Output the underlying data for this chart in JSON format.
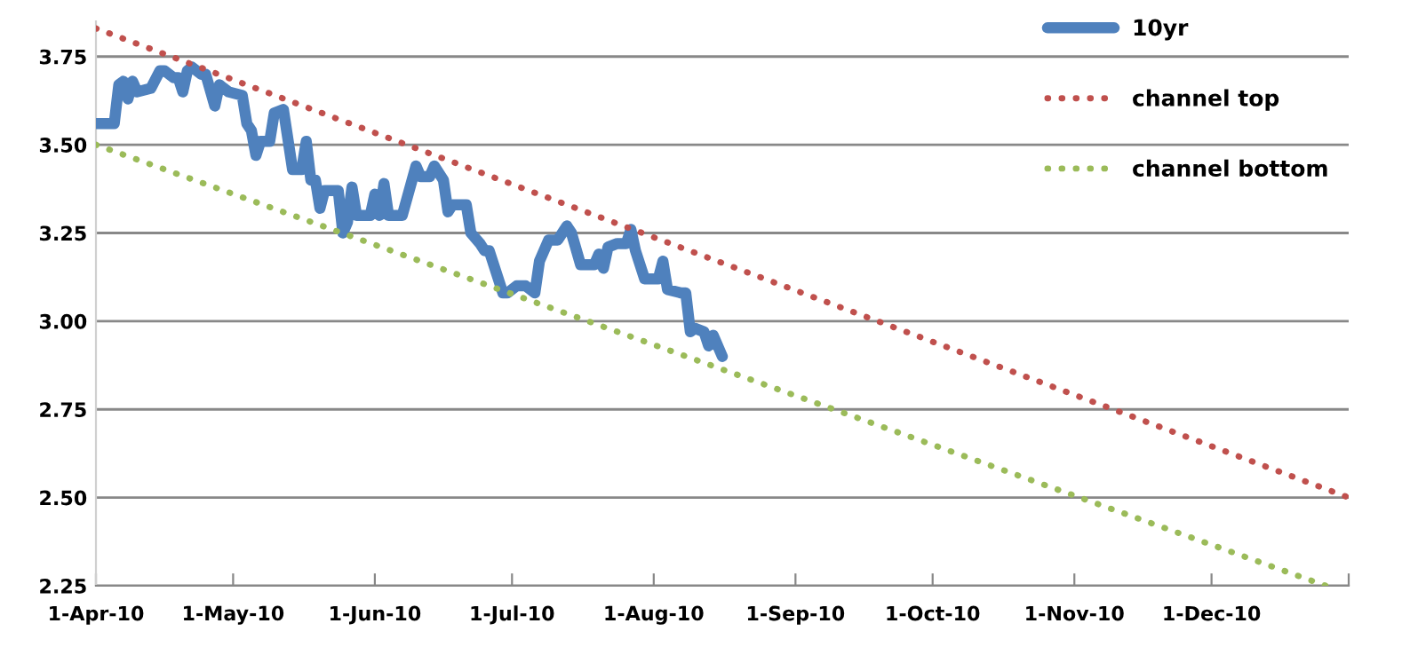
{
  "chart_data": {
    "type": "line",
    "xlim": [
      "2010-04-01",
      "2010-12-31"
    ],
    "xticks": [
      {
        "value": "2010-04-01",
        "label": "1-Apr-10"
      },
      {
        "value": "2010-05-01",
        "label": "1-May-10"
      },
      {
        "value": "2010-06-01",
        "label": "1-Jun-10"
      },
      {
        "value": "2010-07-01",
        "label": "1-Jul-10"
      },
      {
        "value": "2010-08-01",
        "label": "1-Aug-10"
      },
      {
        "value": "2010-09-01",
        "label": "1-Sep-10"
      },
      {
        "value": "2010-10-01",
        "label": "1-Oct-10"
      },
      {
        "value": "2010-11-01",
        "label": "1-Nov-10"
      },
      {
        "value": "2010-12-01",
        "label": "1-Dec-10"
      },
      {
        "value": "2010-12-31",
        "label": null
      }
    ],
    "ylim": [
      2.25,
      3.85
    ],
    "yticks": [
      {
        "value": 2.25,
        "label": "2.25"
      },
      {
        "value": 2.5,
        "label": "2.50"
      },
      {
        "value": 2.75,
        "label": "2.75"
      },
      {
        "value": 3.0,
        "label": "3.00"
      },
      {
        "value": 3.25,
        "label": "3.25"
      },
      {
        "value": 3.5,
        "label": "3.50"
      },
      {
        "value": 3.75,
        "label": "3.75"
      }
    ],
    "grid": "y",
    "legend": "top right",
    "series": [
      {
        "name": "10yr",
        "color": "#4f81bd",
        "line_style": "solid",
        "x": [
          "2010-04-01",
          "2010-04-05",
          "2010-04-06",
          "2010-04-07",
          "2010-04-08",
          "2010-04-09",
          "2010-04-10",
          "2010-04-13",
          "2010-04-15",
          "2010-04-16",
          "2010-04-18",
          "2010-04-19",
          "2010-04-20",
          "2010-04-21",
          "2010-04-22",
          "2010-04-24",
          "2010-04-25",
          "2010-04-27",
          "2010-04-28",
          "2010-04-30",
          "2010-05-03",
          "2010-05-04",
          "2010-05-05",
          "2010-05-06",
          "2010-05-07",
          "2010-05-09",
          "2010-05-10",
          "2010-05-12",
          "2010-05-14",
          "2010-05-16",
          "2010-05-17",
          "2010-05-18",
          "2010-05-19",
          "2010-05-20",
          "2010-05-21",
          "2010-05-24",
          "2010-05-25",
          "2010-05-26",
          "2010-05-27",
          "2010-05-28",
          "2010-05-31",
          "2010-06-01",
          "2010-06-02",
          "2010-06-03",
          "2010-06-04",
          "2010-06-07",
          "2010-06-10",
          "2010-06-11",
          "2010-06-13",
          "2010-06-14",
          "2010-06-16",
          "2010-06-17",
          "2010-06-18",
          "2010-06-21",
          "2010-06-22",
          "2010-06-24",
          "2010-06-25",
          "2010-06-26",
          "2010-06-29",
          "2010-06-30",
          "2010-07-02",
          "2010-07-04",
          "2010-07-06",
          "2010-07-07",
          "2010-07-09",
          "2010-07-11",
          "2010-07-13",
          "2010-07-14",
          "2010-07-16",
          "2010-07-19",
          "2010-07-20",
          "2010-07-21",
          "2010-07-22",
          "2010-07-24",
          "2010-07-26",
          "2010-07-27",
          "2010-07-28",
          "2010-07-30",
          "2010-08-02",
          "2010-08-03",
          "2010-08-04",
          "2010-08-07",
          "2010-08-08",
          "2010-08-09",
          "2010-08-10",
          "2010-08-12",
          "2010-08-13",
          "2010-08-14",
          "2010-08-16"
        ],
        "values": [
          3.56,
          3.56,
          3.67,
          3.68,
          3.63,
          3.68,
          3.65,
          3.66,
          3.71,
          3.71,
          3.69,
          3.69,
          3.65,
          3.71,
          3.72,
          3.7,
          3.7,
          3.61,
          3.67,
          3.65,
          3.64,
          3.56,
          3.54,
          3.47,
          3.51,
          3.51,
          3.59,
          3.6,
          3.43,
          3.43,
          3.51,
          3.4,
          3.4,
          3.32,
          3.37,
          3.37,
          3.25,
          3.28,
          3.38,
          3.3,
          3.3,
          3.36,
          3.3,
          3.39,
          3.3,
          3.3,
          3.44,
          3.41,
          3.41,
          3.44,
          3.4,
          3.31,
          3.33,
          3.33,
          3.25,
          3.22,
          3.2,
          3.2,
          3.08,
          3.08,
          3.1,
          3.1,
          3.08,
          3.17,
          3.23,
          3.23,
          3.27,
          3.25,
          3.16,
          3.16,
          3.19,
          3.15,
          3.21,
          3.22,
          3.22,
          3.26,
          3.2,
          3.12,
          3.12,
          3.17,
          3.09,
          3.08,
          3.08,
          2.97,
          2.98,
          2.97,
          2.93,
          2.96,
          2.9
        ]
      },
      {
        "name": "channel top",
        "color": "#c0504d",
        "line_style": "dotted",
        "x": [
          "2010-04-01",
          "2010-12-31"
        ],
        "values": [
          3.83,
          2.5
        ]
      },
      {
        "name": "channel bottom",
        "color": "#9bbb59",
        "line_style": "dotted",
        "x": [
          "2010-04-01",
          "2010-12-26"
        ],
        "values": [
          3.5,
          2.25
        ]
      }
    ]
  }
}
